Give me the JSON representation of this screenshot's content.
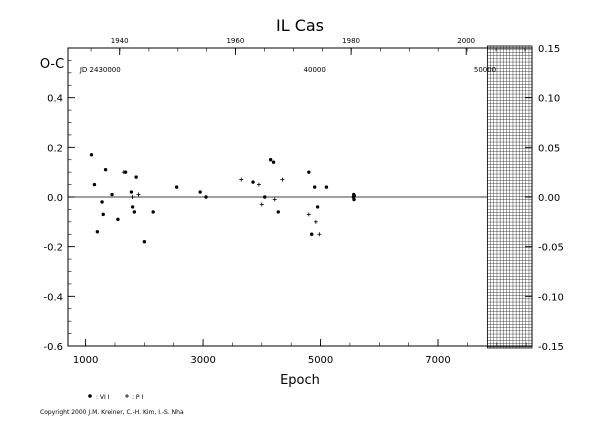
{
  "chart_data": {
    "type": "scatter",
    "title": "IL Cas",
    "xlabel": "Epoch",
    "ylabel": "O-C",
    "xlim": [
      700,
      8600
    ],
    "ylim": [
      -0.6,
      0.6
    ],
    "right_ylim": [
      -0.15,
      0.15
    ],
    "x_ticks": [
      "1000",
      "3000",
      "5000",
      "7000"
    ],
    "y_ticks": [
      "-0.6",
      "-0.4",
      "-0.2",
      "0.0",
      "0.2",
      "0.4"
    ],
    "y_tick_values": [
      -0.6,
      -0.4,
      -0.2,
      0.0,
      0.2,
      0.4
    ],
    "right_ticks": [
      "-0.15",
      "-0.10",
      "-0.05",
      "0.00",
      "0.05",
      "0.10",
      "0.15"
    ],
    "right_tick_values": [
      -0.15,
      -0.1,
      -0.05,
      0.0,
      0.05,
      0.1,
      0.15
    ],
    "top_year_ticks": [
      "1940",
      "1960",
      "1980",
      "2000"
    ],
    "top_year_tick_epochs": [
      1580,
      3550,
      5520,
      7480
    ],
    "top_jd_labels": [
      "JD 2430000",
      "40000",
      "50000"
    ],
    "top_jd_label_epochs": [
      1250,
      4900,
      7800
    ],
    "grid_region_x": [
      7840,
      8600
    ],
    "series": [
      {
        "name": "",
        "marker": "dot",
        "points": [
          [
            1100,
            0.17
          ],
          [
            1150,
            0.05
          ],
          [
            1200,
            -0.14
          ],
          [
            1280,
            -0.02
          ],
          [
            1300,
            -0.07
          ],
          [
            1340,
            0.11
          ],
          [
            1450,
            0.01
          ],
          [
            1550,
            -0.09
          ],
          [
            1680,
            0.1
          ],
          [
            1780,
            0.02
          ],
          [
            1800,
            -0.04
          ],
          [
            1830,
            -0.06
          ],
          [
            1860,
            0.08
          ],
          [
            2000,
            -0.18
          ],
          [
            2150,
            -0.06
          ],
          [
            2550,
            0.04
          ],
          [
            2950,
            0.02
          ],
          [
            3050,
            0.0
          ],
          [
            3850,
            0.06
          ],
          [
            4050,
            0.0
          ],
          [
            4150,
            0.15
          ],
          [
            4200,
            0.14
          ],
          [
            4280,
            -0.06
          ],
          [
            4800,
            0.1
          ],
          [
            4850,
            -0.15
          ],
          [
            4900,
            0.04
          ],
          [
            4950,
            -0.04
          ],
          [
            5100,
            0.04
          ],
          [
            5560,
            0.0
          ],
          [
            5565,
            0.01
          ],
          [
            5570,
            -0.01
          ],
          [
            5575,
            0.005
          ]
        ]
      },
      {
        "name": "",
        "marker": "plus",
        "points": [
          [
            1650,
            0.1
          ],
          [
            1800,
            0.0
          ],
          [
            1900,
            0.01
          ],
          [
            3650,
            0.07
          ],
          [
            3950,
            0.05
          ],
          [
            4000,
            -0.03
          ],
          [
            4220,
            -0.01
          ],
          [
            4350,
            0.07
          ],
          [
            4800,
            -0.07
          ],
          [
            4920,
            -0.1
          ],
          [
            4980,
            -0.15
          ]
        ]
      }
    ]
  },
  "legend": {
    "items": [
      {
        "label": ": VI I",
        "marker": "dot"
      },
      {
        "label": ": P I",
        "marker": "plus"
      }
    ]
  },
  "copyright": "Copyright 2000 J.M. Kreiner, C.-H. Kim, I.-S. Nha",
  "colors": {
    "ink": "#000000",
    "background": "#ffffff"
  }
}
